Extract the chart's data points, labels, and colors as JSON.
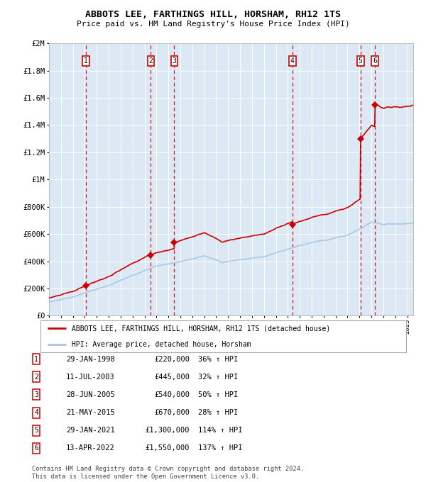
{
  "title": "ABBOTS LEE, FARTHINGS HILL, HORSHAM, RH12 1TS",
  "subtitle": "Price paid vs. HM Land Registry's House Price Index (HPI)",
  "background_color": "#dce9f5",
  "plot_bg_color": "#dce9f5",
  "hpi_line_color": "#a8c8e8",
  "sale_line_color": "#cc0000",
  "sale_marker_color": "#cc0000",
  "dashed_line_color": "#cc0000",
  "ylim": [
    0,
    2000000
  ],
  "yticks": [
    0,
    200000,
    400000,
    600000,
    800000,
    1000000,
    1200000,
    1400000,
    1600000,
    1800000,
    2000000
  ],
  "ytick_labels": [
    "£0",
    "£200K",
    "£400K",
    "£600K",
    "£800K",
    "£1M",
    "£1.2M",
    "£1.4M",
    "£1.6M",
    "£1.8M",
    "£2M"
  ],
  "xlim_start": 1995.0,
  "xlim_end": 2025.5,
  "sales": [
    {
      "num": 1,
      "date_dec": 1998.08,
      "price": 220000,
      "label": "1"
    },
    {
      "num": 2,
      "date_dec": 2003.53,
      "price": 445000,
      "label": "2"
    },
    {
      "num": 3,
      "date_dec": 2005.49,
      "price": 540000,
      "label": "3"
    },
    {
      "num": 4,
      "date_dec": 2015.38,
      "price": 670000,
      "label": "4"
    },
    {
      "num": 5,
      "date_dec": 2021.08,
      "price": 1300000,
      "label": "5"
    },
    {
      "num": 6,
      "date_dec": 2022.28,
      "price": 1550000,
      "label": "6"
    }
  ],
  "legend_entries": [
    {
      "label": "ABBOTS LEE, FARTHINGS HILL, HORSHAM, RH12 1TS (detached house)",
      "color": "#cc0000",
      "lw": 2
    },
    {
      "label": "HPI: Average price, detached house, Horsham",
      "color": "#a8c8e8",
      "lw": 2
    }
  ],
  "table_rows": [
    {
      "num": 1,
      "date": "29-JAN-1998",
      "price": "£220,000",
      "change": "36% ↑ HPI"
    },
    {
      "num": 2,
      "date": "11-JUL-2003",
      "price": "£445,000",
      "change": "32% ↑ HPI"
    },
    {
      "num": 3,
      "date": "28-JUN-2005",
      "price": "£540,000",
      "change": "50% ↑ HPI"
    },
    {
      "num": 4,
      "date": "21-MAY-2015",
      "price": "£670,000",
      "change": "28% ↑ HPI"
    },
    {
      "num": 5,
      "date": "29-JAN-2021",
      "price": "£1,300,000",
      "change": "114% ↑ HPI"
    },
    {
      "num": 6,
      "date": "13-APR-2022",
      "price": "£1,550,000",
      "change": "137% ↑ HPI"
    }
  ],
  "footer": "Contains HM Land Registry data © Crown copyright and database right 2024.\nThis data is licensed under the Open Government Licence v3.0."
}
